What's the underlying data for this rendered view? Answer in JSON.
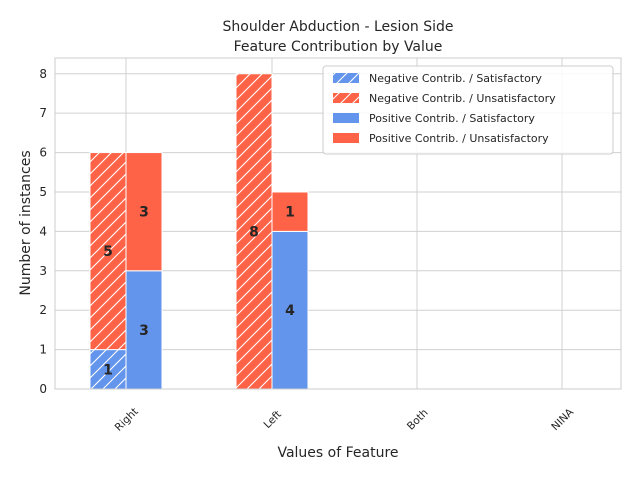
{
  "chart_data": {
    "type": "bar",
    "title_lines": [
      "Shoulder Abduction - Lesion Side",
      "Feature Contribution by Value"
    ],
    "xlabel": "Values of Feature",
    "ylabel": "Number of instances",
    "categories": [
      "Right",
      "Left",
      "Both",
      "NINA"
    ],
    "ylim": [
      0,
      8.4
    ],
    "yticks": [
      0,
      1,
      2,
      3,
      4,
      5,
      6,
      7,
      8
    ],
    "grid": true,
    "legend_position": "top-right",
    "colors": {
      "satisfactory": "#6495ed",
      "unsatisfactory": "#ff6347"
    },
    "groups": [
      {
        "name": "Negative Contrib.",
        "hatched": true,
        "stacks": [
          {
            "name": "Negative Contrib. / Satisfactory",
            "outcome": "satisfactory",
            "values": [
              1,
              0,
              0,
              0
            ]
          },
          {
            "name": "Negative Contrib. / Unsatisfactory",
            "outcome": "unsatisfactory",
            "values": [
              5,
              8,
              0,
              0
            ]
          }
        ]
      },
      {
        "name": "Positive Contrib.",
        "hatched": false,
        "stacks": [
          {
            "name": "Positive Contrib. / Satisfactory",
            "outcome": "satisfactory",
            "values": [
              3,
              4,
              0,
              0
            ]
          },
          {
            "name": "Positive Contrib. / Unsatisfactory",
            "outcome": "unsatisfactory",
            "values": [
              3,
              1,
              0,
              0
            ]
          }
        ]
      }
    ]
  }
}
